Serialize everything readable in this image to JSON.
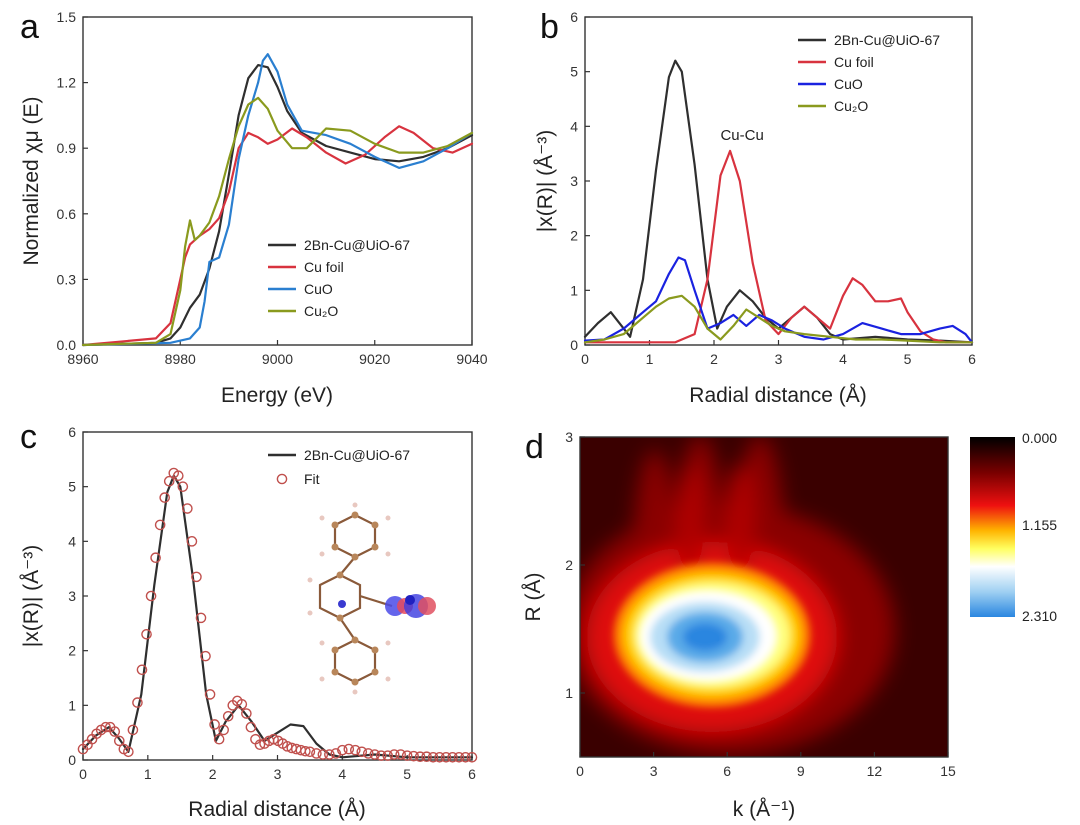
{
  "colors": {
    "black": "#2f2f2f",
    "red": "#d8333f",
    "blue_a": "#2a7fd0",
    "blue_b": "#1a22e0",
    "olive": "#8a9a1e",
    "fit": "#c0504d"
  },
  "chart_data": [
    {
      "panel": "a",
      "type": "line",
      "xlabel": "Energy (eV)",
      "ylabel": "Normalized χμ (E)",
      "xlim": [
        8960,
        9040
      ],
      "ylim": [
        0,
        1.5
      ],
      "xticks": [
        "8960",
        "8980",
        "9000",
        "9020",
        "9040"
      ],
      "yticks": [
        "0.0",
        "0.3",
        "0.6",
        "0.9",
        "1.2",
        "1.5"
      ],
      "legend_position": "bottom-right",
      "series": [
        {
          "name": "2Bn-Cu@UiO-67",
          "color_key": "black",
          "x": [
            8960,
            8975,
            8978,
            8980,
            8982,
            8984,
            8986,
            8988,
            8990,
            8992,
            8994,
            8996,
            8998,
            9000,
            9002,
            9005,
            9010,
            9015,
            9020,
            9025,
            9030,
            9035,
            9040
          ],
          "y": [
            0.0,
            0.01,
            0.03,
            0.08,
            0.17,
            0.23,
            0.35,
            0.52,
            0.78,
            1.05,
            1.22,
            1.28,
            1.27,
            1.18,
            1.07,
            0.97,
            0.91,
            0.88,
            0.85,
            0.84,
            0.86,
            0.9,
            0.96
          ]
        },
        {
          "name": "Cu foil",
          "color_key": "red",
          "x": [
            8960,
            8975,
            8978,
            8979,
            8980,
            8981,
            8982,
            8984,
            8986,
            8988,
            8990,
            8992,
            8994,
            8996,
            8998,
            9000,
            9003,
            9006,
            9010,
            9014,
            9018,
            9022,
            9025,
            9028,
            9032,
            9036,
            9040
          ],
          "y": [
            0.0,
            0.03,
            0.1,
            0.2,
            0.3,
            0.4,
            0.46,
            0.5,
            0.53,
            0.58,
            0.7,
            0.9,
            0.97,
            0.95,
            0.92,
            0.94,
            0.99,
            0.95,
            0.88,
            0.83,
            0.87,
            0.95,
            1.0,
            0.97,
            0.9,
            0.88,
            0.92
          ]
        },
        {
          "name": "CuO",
          "color_key": "blue_a",
          "x": [
            8960,
            8978,
            8982,
            8984,
            8985,
            8986,
            8988,
            8990,
            8992,
            8994,
            8996,
            8997,
            8998,
            9000,
            9002,
            9005,
            9010,
            9015,
            9020,
            9025,
            9030,
            9035,
            9040
          ],
          "y": [
            0.0,
            0.01,
            0.03,
            0.08,
            0.2,
            0.38,
            0.4,
            0.55,
            0.85,
            1.05,
            1.2,
            1.3,
            1.33,
            1.25,
            1.1,
            0.98,
            0.96,
            0.92,
            0.86,
            0.81,
            0.84,
            0.9,
            0.97
          ]
        },
        {
          "name": "Cu₂O",
          "color_key": "olive",
          "x": [
            8960,
            8975,
            8978,
            8980,
            8981,
            8982,
            8983,
            8984,
            8986,
            8988,
            8990,
            8992,
            8994,
            8996,
            8998,
            9000,
            9003,
            9006,
            9010,
            9015,
            9020,
            9025,
            9030,
            9035,
            9040
          ],
          "y": [
            0.0,
            0.01,
            0.05,
            0.25,
            0.45,
            0.57,
            0.48,
            0.5,
            0.56,
            0.68,
            0.85,
            1.0,
            1.1,
            1.13,
            1.08,
            0.98,
            0.9,
            0.9,
            0.99,
            0.98,
            0.92,
            0.88,
            0.88,
            0.91,
            0.97
          ]
        }
      ]
    },
    {
      "panel": "b",
      "type": "line",
      "xlabel": "Radial distance (Å)",
      "ylabel": "|x(R)| (Å⁻³)",
      "xlim": [
        0,
        6
      ],
      "ylim": [
        0,
        6
      ],
      "xticks": [
        "0",
        "1",
        "2",
        "3",
        "4",
        "5",
        "6"
      ],
      "yticks": [
        "0",
        "1",
        "2",
        "3",
        "4",
        "5",
        "6"
      ],
      "legend_position": "top-right",
      "annotations": [
        {
          "text": "Cu-Cu",
          "x": 2.1,
          "y": 3.75
        }
      ],
      "series": [
        {
          "name": "2Bn-Cu@UiO-67",
          "color_key": "black",
          "x": [
            0,
            0.2,
            0.4,
            0.6,
            0.7,
            0.9,
            1.1,
            1.3,
            1.4,
            1.5,
            1.7,
            1.9,
            2.05,
            2.2,
            2.4,
            2.6,
            2.8,
            3.0,
            3.2,
            3.4,
            3.6,
            3.8,
            4.0,
            4.5,
            5.0,
            5.5,
            6.0
          ],
          "y": [
            0.15,
            0.4,
            0.6,
            0.3,
            0.15,
            1.2,
            3.2,
            4.9,
            5.2,
            5.0,
            3.3,
            1.2,
            0.3,
            0.7,
            1.0,
            0.8,
            0.5,
            0.3,
            0.5,
            0.7,
            0.5,
            0.2,
            0.1,
            0.15,
            0.1,
            0.08,
            0.05
          ]
        },
        {
          "name": "Cu foil",
          "color_key": "red",
          "x": [
            0,
            0.5,
            1.0,
            1.4,
            1.7,
            1.9,
            2.1,
            2.25,
            2.4,
            2.6,
            2.8,
            3.0,
            3.2,
            3.4,
            3.6,
            3.8,
            4.0,
            4.15,
            4.3,
            4.5,
            4.7,
            4.9,
            5.0,
            5.2,
            5.4,
            5.6,
            6.0
          ],
          "y": [
            0.05,
            0.05,
            0.05,
            0.05,
            0.2,
            1.2,
            3.1,
            3.55,
            3.0,
            1.5,
            0.45,
            0.2,
            0.5,
            0.7,
            0.5,
            0.3,
            0.9,
            1.22,
            1.1,
            0.8,
            0.8,
            0.85,
            0.6,
            0.25,
            0.1,
            0.05,
            0.05
          ]
        },
        {
          "name": "CuO",
          "color_key": "blue_b",
          "x": [
            0,
            0.3,
            0.6,
            0.9,
            1.1,
            1.3,
            1.45,
            1.55,
            1.7,
            1.9,
            2.1,
            2.3,
            2.5,
            2.7,
            2.9,
            3.1,
            3.4,
            3.7,
            4.0,
            4.3,
            4.6,
            4.9,
            5.2,
            5.5,
            5.7,
            5.9,
            6.0
          ],
          "y": [
            0.08,
            0.1,
            0.3,
            0.6,
            0.8,
            1.3,
            1.6,
            1.55,
            1.0,
            0.3,
            0.4,
            0.55,
            0.35,
            0.55,
            0.45,
            0.3,
            0.15,
            0.1,
            0.2,
            0.4,
            0.3,
            0.2,
            0.2,
            0.3,
            0.35,
            0.2,
            0.05
          ]
        },
        {
          "name": "Cu₂O",
          "color_key": "olive",
          "x": [
            0,
            0.3,
            0.6,
            0.9,
            1.1,
            1.3,
            1.5,
            1.7,
            1.9,
            2.1,
            2.3,
            2.5,
            2.7,
            2.9,
            3.1,
            3.4,
            3.8,
            4.2,
            4.6,
            5.0,
            5.5,
            6.0
          ],
          "y": [
            0.05,
            0.1,
            0.2,
            0.5,
            0.7,
            0.85,
            0.9,
            0.7,
            0.3,
            0.1,
            0.35,
            0.65,
            0.5,
            0.35,
            0.25,
            0.2,
            0.15,
            0.1,
            0.1,
            0.08,
            0.05,
            0.05
          ]
        }
      ]
    },
    {
      "panel": "c",
      "type": "line",
      "xlabel": "Radial distance (Å)",
      "ylabel": "|x(R)| (Å⁻³)",
      "xlim": [
        0,
        6
      ],
      "ylim": [
        0,
        6
      ],
      "xticks": [
        "0",
        "1",
        "2",
        "3",
        "4",
        "5",
        "6"
      ],
      "yticks": [
        "0",
        "1",
        "2",
        "3",
        "4",
        "5",
        "6"
      ],
      "legend_position": "top-right",
      "series": [
        {
          "name": "2Bn-Cu@UiO-67",
          "style": "line",
          "color_key": "black",
          "x": [
            0,
            0.2,
            0.4,
            0.55,
            0.7,
            0.9,
            1.1,
            1.3,
            1.4,
            1.5,
            1.7,
            1.9,
            2.05,
            2.2,
            2.4,
            2.6,
            2.8,
            3.0,
            3.2,
            3.4,
            3.6,
            3.8,
            4.0,
            4.5,
            5.0,
            5.5,
            6.0
          ],
          "y": [
            0.2,
            0.45,
            0.6,
            0.4,
            0.15,
            1.2,
            3.2,
            4.9,
            5.2,
            5.0,
            3.3,
            1.2,
            0.35,
            0.7,
            1.0,
            0.7,
            0.35,
            0.5,
            0.65,
            0.62,
            0.3,
            0.1,
            0.05,
            0.1,
            0.05,
            0.05,
            0.05
          ]
        },
        {
          "name": "Fit",
          "style": "circles",
          "color_key": "fit",
          "x": [
            0.0,
            0.07,
            0.14,
            0.21,
            0.28,
            0.35,
            0.42,
            0.49,
            0.56,
            0.63,
            0.7,
            0.77,
            0.84,
            0.91,
            0.98,
            1.05,
            1.12,
            1.19,
            1.26,
            1.33,
            1.4,
            1.47,
            1.54,
            1.61,
            1.68,
            1.75,
            1.82,
            1.89,
            1.96,
            2.03,
            2.1,
            2.17,
            2.24,
            2.31,
            2.38,
            2.45,
            2.52,
            2.59,
            2.66,
            2.73,
            2.8,
            2.87,
            2.94,
            3.01,
            3.08,
            3.15,
            3.22,
            3.29,
            3.36,
            3.43,
            3.5,
            3.6,
            3.7,
            3.8,
            3.9,
            4.0,
            4.1,
            4.2,
            4.3,
            4.4,
            4.5,
            4.6,
            4.7,
            4.8,
            4.9,
            5.0,
            5.1,
            5.2,
            5.3,
            5.4,
            5.5,
            5.6,
            5.7,
            5.8,
            5.9,
            6.0
          ],
          "y": [
            0.2,
            0.28,
            0.38,
            0.48,
            0.55,
            0.6,
            0.6,
            0.52,
            0.35,
            0.2,
            0.15,
            0.55,
            1.05,
            1.65,
            2.3,
            3.0,
            3.7,
            4.3,
            4.8,
            5.1,
            5.25,
            5.2,
            5.0,
            4.6,
            4.0,
            3.35,
            2.6,
            1.9,
            1.2,
            0.65,
            0.38,
            0.55,
            0.8,
            1.0,
            1.08,
            1.02,
            0.85,
            0.6,
            0.38,
            0.28,
            0.3,
            0.35,
            0.38,
            0.35,
            0.3,
            0.25,
            0.22,
            0.2,
            0.18,
            0.16,
            0.15,
            0.12,
            0.1,
            0.1,
            0.12,
            0.18,
            0.2,
            0.18,
            0.15,
            0.12,
            0.1,
            0.08,
            0.08,
            0.1,
            0.1,
            0.08,
            0.07,
            0.06,
            0.06,
            0.05,
            0.05,
            0.05,
            0.05,
            0.05,
            0.05,
            0.05
          ]
        }
      ]
    },
    {
      "panel": "d",
      "type": "heatmap",
      "xlabel": "k (Å⁻¹)",
      "ylabel": "R (Å)",
      "xlim": [
        0,
        15
      ],
      "ylim": [
        0.5,
        3
      ],
      "xticks": [
        "0",
        "3",
        "6",
        "9",
        "12",
        "15"
      ],
      "yticks": [
        "1",
        "2",
        "3"
      ],
      "colorbar": {
        "labels": [
          "0.000",
          "1.155",
          "2.310"
        ],
        "min": 0.0,
        "max": 2.31
      },
      "peak": {
        "k": 5.6,
        "R": 1.42,
        "value": 2.31
      }
    }
  ]
}
